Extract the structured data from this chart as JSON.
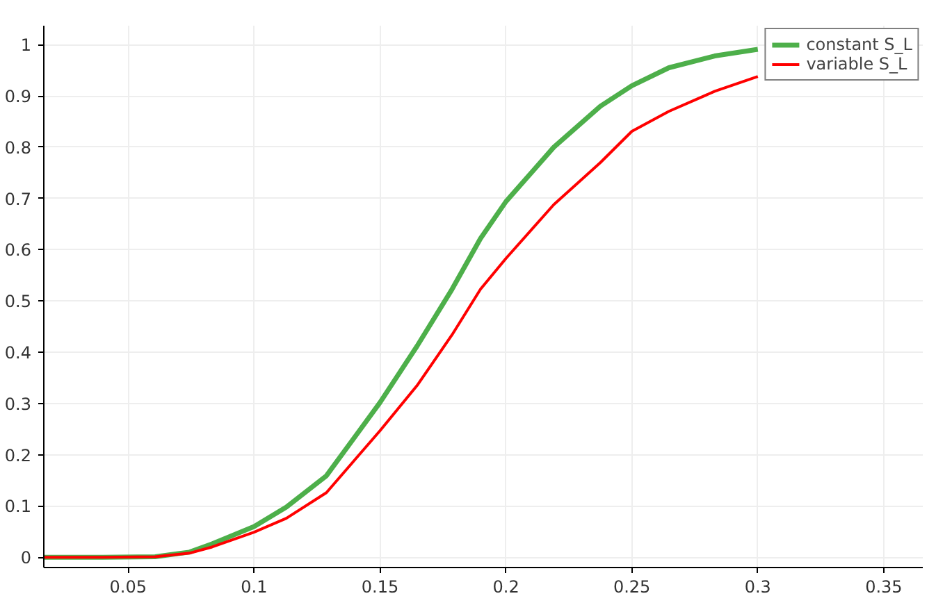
{
  "chart_data": {
    "type": "line",
    "xlim": [
      0.0165,
      0.3655
    ],
    "ylim": [
      -0.02,
      1.037
    ],
    "xticks": [
      0.05,
      0.1,
      0.15,
      0.2,
      0.25,
      0.3,
      0.35
    ],
    "yticks": [
      0,
      0.1,
      0.2,
      0.3,
      0.4,
      0.5,
      0.6,
      0.7,
      0.8,
      0.9,
      1
    ],
    "grid": true,
    "legend": "top right",
    "marker": "none",
    "line_style": "solid",
    "series": [
      {
        "name": "constant S_L",
        "color": "#4daf4a",
        "x": [
          0.0165,
          0.04,
          0.0607,
          0.0743,
          0.0833,
          0.1,
          0.1128,
          0.1287,
          0.15,
          0.1647,
          0.1786,
          0.1899,
          0.2,
          0.219,
          0.2375,
          0.25,
          0.2647,
          0.2829,
          0.3
        ],
        "values": [
          0,
          0,
          0.001,
          0.01,
          0.026,
          0.06,
          0.098,
          0.159,
          0.302,
          0.412,
          0.523,
          0.622,
          0.694,
          0.8,
          0.88,
          0.92,
          0.955,
          0.978,
          0.991
        ]
      },
      {
        "name": "variable S_L",
        "color": "#ff0000",
        "x": [
          0.0165,
          0.04,
          0.0607,
          0.0743,
          0.0833,
          0.1,
          0.1128,
          0.1287,
          0.15,
          0.1647,
          0.1786,
          0.1899,
          0.2,
          0.219,
          0.2375,
          0.25,
          0.2647,
          0.2829,
          0.3
        ],
        "values": [
          0,
          0,
          0.001,
          0.008,
          0.02,
          0.049,
          0.076,
          0.126,
          0.247,
          0.335,
          0.434,
          0.523,
          0.583,
          0.688,
          0.77,
          0.831,
          0.87,
          0.909,
          0.938
        ]
      }
    ]
  }
}
